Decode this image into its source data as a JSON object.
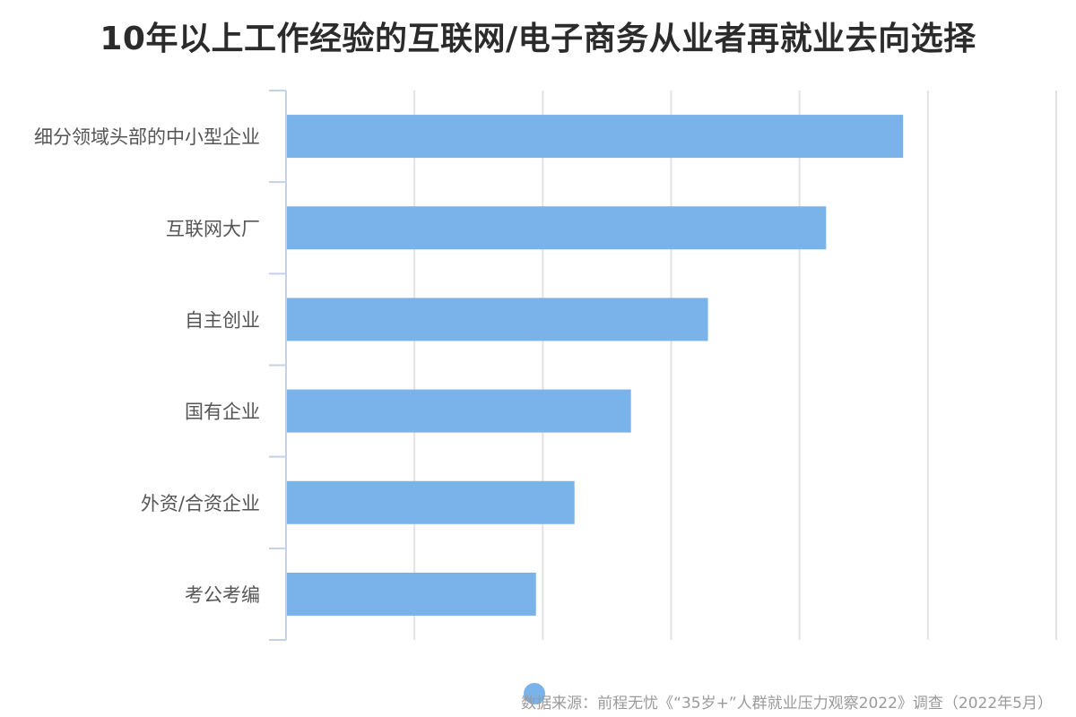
{
  "colors": {
    "bar": "#7ab2ea",
    "axis": "#c5d1e6",
    "grid": "#e3e3e3"
  },
  "chart_data": {
    "type": "bar",
    "orientation": "horizontal",
    "title": "10年以上工作经验的互联网/电子商务从业者再就业去向选择",
    "categories": [
      "细分领域头部的中小型企业",
      "互联网大厂",
      "自主创业",
      "国有企业",
      "外资/合资企业",
      "考公考编"
    ],
    "values": [
      24,
      21,
      16.4,
      13.4,
      11.2,
      9.7
    ],
    "xlim": [
      0,
      30
    ],
    "grid": true,
    "legend": "bottom-center",
    "source": "数据来源：前程无忧《“35岁+”人群就业压力观察2022》调查（2022年5月）"
  }
}
